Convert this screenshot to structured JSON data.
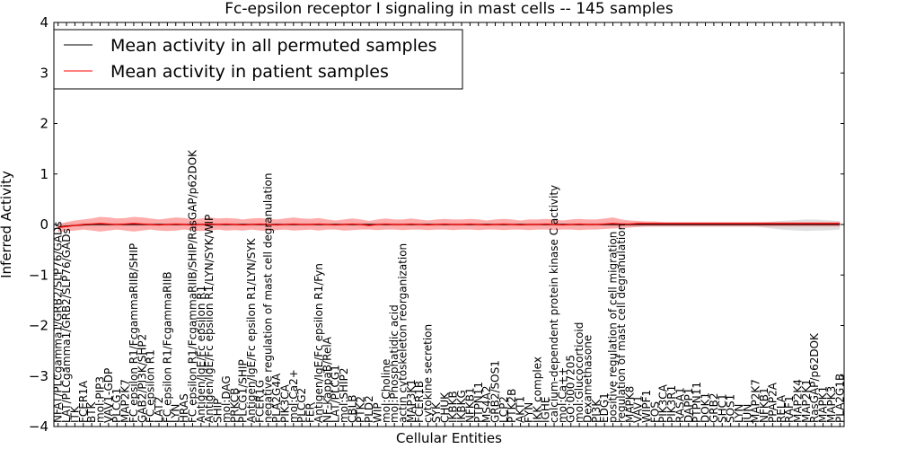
{
  "chart_data": {
    "type": "line",
    "title": "Fc-epsilon receptor I signaling in mast cells -- 145 samples",
    "xlabel": "Cellular Entities",
    "ylabel": "Inferred Activity",
    "ylim": [
      -4,
      4
    ],
    "yticks": [
      "4",
      "3",
      "2",
      "1",
      "0",
      "−1",
      "−2",
      "−3",
      "−4"
    ],
    "legend": {
      "location": "top-left",
      "entries": [
        {
          "label": "Mean activity in all permuted samples",
          "color": "#000000"
        },
        {
          "label": "Mean activity in patient samples",
          "color": "#ff0000"
        }
      ]
    },
    "colors": {
      "permuted_line": "#000000",
      "patient_line": "#ff0000",
      "patient_band": "#ff8080",
      "permuted_band": "#cccccc"
    },
    "categories": [
      "NFAT/PLCgamma1/GRB2/SLP76/GADs",
      "LAT/PLCgamma1/GRB2/SLP76/GADs",
      "ITK",
      "FCER1A",
      "BTK",
      "mol:PIP3",
      "VAV1-GDP",
      "PLCG1",
      "MAP2K7",
      "FC epsilon R1/FcgammaRIIB/SHIP",
      "GAB2/PI3K/SHP2",
      "FC epsilon R1",
      "LAT2",
      "FC epsilon R1/FcgammaRIIB",
      "LYN",
      "HRAS",
      "FC epsilon R1/FcgammaRIIB/SHIP/RasGAP/p62DOK",
      "Antigen/IgE/Fc epsilon R1",
      "Antigen/IgE/Fc epsilon R1/LYN/SYK/WIP",
      "SHIP",
      "mol:DAG",
      "PRKCB",
      "PLCG1/SHIP",
      "Antigen/IgE/Fc epsilon R1/LYN/SYK",
      "FCER1G",
      "negative regulation of mast cell degranulation",
      "PLA2G4A",
      "PIK3CA",
      "mol:Ca2+",
      "PLCG2",
      "FER",
      "Antigen/IgE/Fc epsilon R1/Fyn",
      "NF-kappaB/RelA",
      "LAT/PLCG1",
      "mol:SHIP2",
      "CBLB",
      "PTK2",
      "PLD2",
      "WIP",
      "mol:Choline",
      "mol:Phosphatidic acid",
      "actin cytoskeleton reorganization",
      "MAP3K1",
      "FCER1B",
      "cytokine secretion",
      "SYK",
      "CHUK",
      "IKBKB",
      "IKBKG",
      "NFKB1",
      "PTPN11",
      "MS4A2",
      "GRB2/SOS1",
      "LCP2",
      "PTK2B",
      "AKT1",
      "FYN",
      "IKK complex",
      "IGHE",
      "calcium-dependent protein kinase C activity",
      "mol:Ca++",
      "GO:0007205",
      "mol:Glucocorticoid",
      "Dexamethasone",
      "PI3K",
      "EDG1",
      "positive regulation of cell migration",
      "regulation of mast cell degranulation",
      "MAPK8",
      "VAV1",
      "WIPF1",
      "FOS",
      "PIK3CA",
      "PIK3R1",
      "RASA1",
      "DAPP1",
      "PTPN11",
      "DOK1",
      "GRB2",
      "SHC1",
      "SOS1",
      "LYN",
      "JUN",
      "MAP2K7",
      "NFKB1",
      "PPAP2A",
      "RELA",
      "RAF1",
      "MAP2K4",
      "MAP2K1",
      "RasGAP/p62DOK",
      "MAPK1",
      "MAPK3",
      "PLA2G1B"
    ],
    "series": [
      {
        "name": "Mean activity in patient samples",
        "values": [
          -0.06,
          -0.04,
          -0.02,
          0.0,
          0.01,
          0.02,
          0.01,
          0.0,
          0.01,
          0.02,
          0.01,
          0.0,
          -0.01,
          0.0,
          0.01,
          0.0,
          -0.01,
          0.0,
          0.01,
          0.0,
          0.01,
          0.0,
          -0.01,
          0.0,
          0.01,
          0.0,
          -0.01,
          0.0,
          0.01,
          0.0,
          0.0,
          0.01,
          0.0,
          -0.01,
          0.0,
          0.01,
          0.0,
          -0.02,
          0.0,
          0.01,
          0.0,
          0.0,
          0.01,
          0.0,
          -0.01,
          0.0,
          0.01,
          0.0,
          0.0,
          0.01,
          0.0,
          -0.01,
          0.0,
          0.01,
          0.0,
          -0.01,
          0.0,
          0.0,
          0.01,
          0.0,
          -0.01,
          0.0,
          0.01,
          0.0,
          0.0,
          0.01,
          0.02,
          0.01,
          0.01,
          0.02,
          0.02,
          0.02,
          0.02,
          0.02,
          0.02,
          0.02,
          0.02,
          0.02,
          0.02,
          0.02,
          0.02,
          0.02,
          0.02,
          0.02,
          0.02,
          0.02,
          0.02,
          0.02,
          0.02,
          0.02,
          0.02,
          0.02,
          0.02,
          0.02
        ]
      },
      {
        "name": "Mean activity in all permuted samples",
        "values": [
          -0.05,
          -0.03,
          -0.02,
          -0.01,
          0.0,
          0.0,
          0.0,
          0.0,
          0.0,
          0.0,
          0.0,
          0.0,
          0.0,
          0.0,
          0.0,
          0.0,
          0.0,
          0.0,
          0.0,
          0.0,
          0.0,
          0.0,
          0.0,
          0.0,
          0.0,
          0.0,
          0.0,
          0.0,
          0.0,
          0.0,
          0.0,
          0.0,
          0.0,
          0.0,
          0.0,
          0.0,
          0.0,
          0.0,
          0.0,
          0.0,
          0.0,
          0.0,
          0.0,
          0.0,
          0.0,
          0.0,
          0.0,
          0.0,
          0.0,
          0.0,
          0.0,
          0.0,
          0.0,
          0.0,
          0.0,
          0.0,
          0.0,
          0.0,
          0.0,
          0.0,
          0.0,
          0.0,
          0.0,
          0.0,
          0.0,
          0.0,
          0.0,
          0.0,
          0.0,
          0.0,
          0.0,
          0.0,
          0.0,
          0.0,
          0.0,
          0.0,
          0.0,
          0.0,
          0.0,
          0.0,
          0.0,
          0.0,
          0.0,
          0.0,
          0.0,
          0.0,
          0.0,
          0.0,
          0.0,
          0.0,
          0.0,
          0.0,
          0.0,
          0.0
        ]
      }
    ],
    "patient_band": {
      "upper": [
        0.0,
        0.05,
        0.08,
        0.1,
        0.12,
        0.15,
        0.14,
        0.12,
        0.13,
        0.15,
        0.14,
        0.12,
        0.1,
        0.12,
        0.14,
        0.13,
        0.1,
        0.12,
        0.14,
        0.12,
        0.13,
        0.12,
        0.1,
        0.12,
        0.13,
        0.11,
        0.1,
        0.12,
        0.14,
        0.12,
        0.11,
        0.13,
        0.1,
        0.08,
        0.1,
        0.12,
        0.1,
        0.07,
        0.1,
        0.12,
        0.1,
        0.1,
        0.12,
        0.1,
        0.08,
        0.1,
        0.11,
        0.1,
        0.1,
        0.11,
        0.1,
        0.08,
        0.1,
        0.11,
        0.1,
        0.08,
        0.1,
        0.1,
        0.11,
        0.1,
        0.08,
        0.1,
        0.11,
        0.1,
        0.1,
        0.12,
        0.14,
        0.1,
        0.08,
        0.07,
        0.06,
        0.06,
        0.05,
        0.05,
        0.05,
        0.05,
        0.05,
        0.05,
        0.05,
        0.05,
        0.05,
        0.05,
        0.05,
        0.05,
        0.05,
        0.05,
        0.05,
        0.05,
        0.05,
        0.05,
        0.05,
        0.05,
        0.05,
        0.05
      ],
      "lower": [
        -0.15,
        -0.13,
        -0.12,
        -0.1,
        -0.12,
        -0.14,
        -0.12,
        -0.1,
        -0.12,
        -0.14,
        -0.12,
        -0.1,
        -0.12,
        -0.13,
        -0.12,
        -0.1,
        -0.12,
        -0.13,
        -0.12,
        -0.1,
        -0.12,
        -0.11,
        -0.12,
        -0.1,
        -0.12,
        -0.13,
        -0.11,
        -0.1,
        -0.12,
        -0.11,
        -0.1,
        -0.12,
        -0.1,
        -0.1,
        -0.12,
        -0.11,
        -0.1,
        -0.1,
        -0.11,
        -0.1,
        -0.1,
        -0.11,
        -0.1,
        -0.1,
        -0.11,
        -0.1,
        -0.1,
        -0.11,
        -0.1,
        -0.1,
        -0.11,
        -0.1,
        -0.1,
        -0.11,
        -0.1,
        -0.1,
        -0.11,
        -0.1,
        -0.1,
        -0.11,
        -0.1,
        -0.1,
        -0.11,
        -0.1,
        -0.1,
        -0.09,
        -0.08,
        -0.07,
        -0.06,
        -0.05,
        -0.04,
        -0.04,
        -0.04,
        -0.04,
        -0.04,
        -0.04,
        -0.04,
        -0.04,
        -0.04,
        -0.04,
        -0.04,
        -0.04,
        -0.04,
        -0.04,
        -0.04,
        -0.04,
        -0.04,
        -0.04,
        -0.04,
        -0.04,
        -0.04,
        -0.04,
        -0.04,
        -0.04
      ]
    },
    "permuted_band": {
      "upper": [
        0.03,
        0.03,
        0.03,
        0.03,
        0.03,
        0.03,
        0.03,
        0.03,
        0.03,
        0.03,
        0.03,
        0.03,
        0.03,
        0.03,
        0.03,
        0.03,
        0.03,
        0.03,
        0.03,
        0.03,
        0.03,
        0.03,
        0.03,
        0.03,
        0.03,
        0.03,
        0.03,
        0.03,
        0.03,
        0.03,
        0.03,
        0.03,
        0.03,
        0.03,
        0.03,
        0.03,
        0.03,
        0.03,
        0.03,
        0.03,
        0.03,
        0.03,
        0.03,
        0.03,
        0.03,
        0.03,
        0.03,
        0.03,
        0.03,
        0.03,
        0.03,
        0.03,
        0.03,
        0.03,
        0.03,
        0.03,
        0.03,
        0.03,
        0.03,
        0.03,
        0.03,
        0.03,
        0.03,
        0.03,
        0.03,
        0.03,
        0.03,
        0.04,
        0.04,
        0.04,
        0.04,
        0.04,
        0.04,
        0.04,
        0.04,
        0.04,
        0.04,
        0.04,
        0.04,
        0.04,
        0.04,
        0.04,
        0.04,
        0.04,
        0.05,
        0.06,
        0.07,
        0.08,
        0.09,
        0.1,
        0.1,
        0.09,
        0.08,
        0.07
      ],
      "lower": [
        -0.03,
        -0.03,
        -0.03,
        -0.03,
        -0.03,
        -0.03,
        -0.03,
        -0.03,
        -0.03,
        -0.03,
        -0.03,
        -0.03,
        -0.03,
        -0.03,
        -0.03,
        -0.03,
        -0.03,
        -0.03,
        -0.03,
        -0.03,
        -0.03,
        -0.03,
        -0.03,
        -0.03,
        -0.03,
        -0.03,
        -0.03,
        -0.03,
        -0.03,
        -0.03,
        -0.03,
        -0.03,
        -0.03,
        -0.03,
        -0.03,
        -0.03,
        -0.03,
        -0.03,
        -0.03,
        -0.03,
        -0.03,
        -0.03,
        -0.03,
        -0.03,
        -0.03,
        -0.03,
        -0.03,
        -0.03,
        -0.03,
        -0.03,
        -0.03,
        -0.03,
        -0.03,
        -0.03,
        -0.03,
        -0.03,
        -0.03,
        -0.03,
        -0.03,
        -0.03,
        -0.03,
        -0.03,
        -0.03,
        -0.03,
        -0.03,
        -0.03,
        -0.03,
        -0.04,
        -0.04,
        -0.04,
        -0.04,
        -0.04,
        -0.04,
        -0.04,
        -0.04,
        -0.04,
        -0.04,
        -0.04,
        -0.04,
        -0.04,
        -0.04,
        -0.04,
        -0.04,
        -0.04,
        -0.06,
        -0.08,
        -0.1,
        -0.11,
        -0.12,
        -0.13,
        -0.12,
        -0.12,
        -0.11,
        -0.1
      ]
    }
  }
}
